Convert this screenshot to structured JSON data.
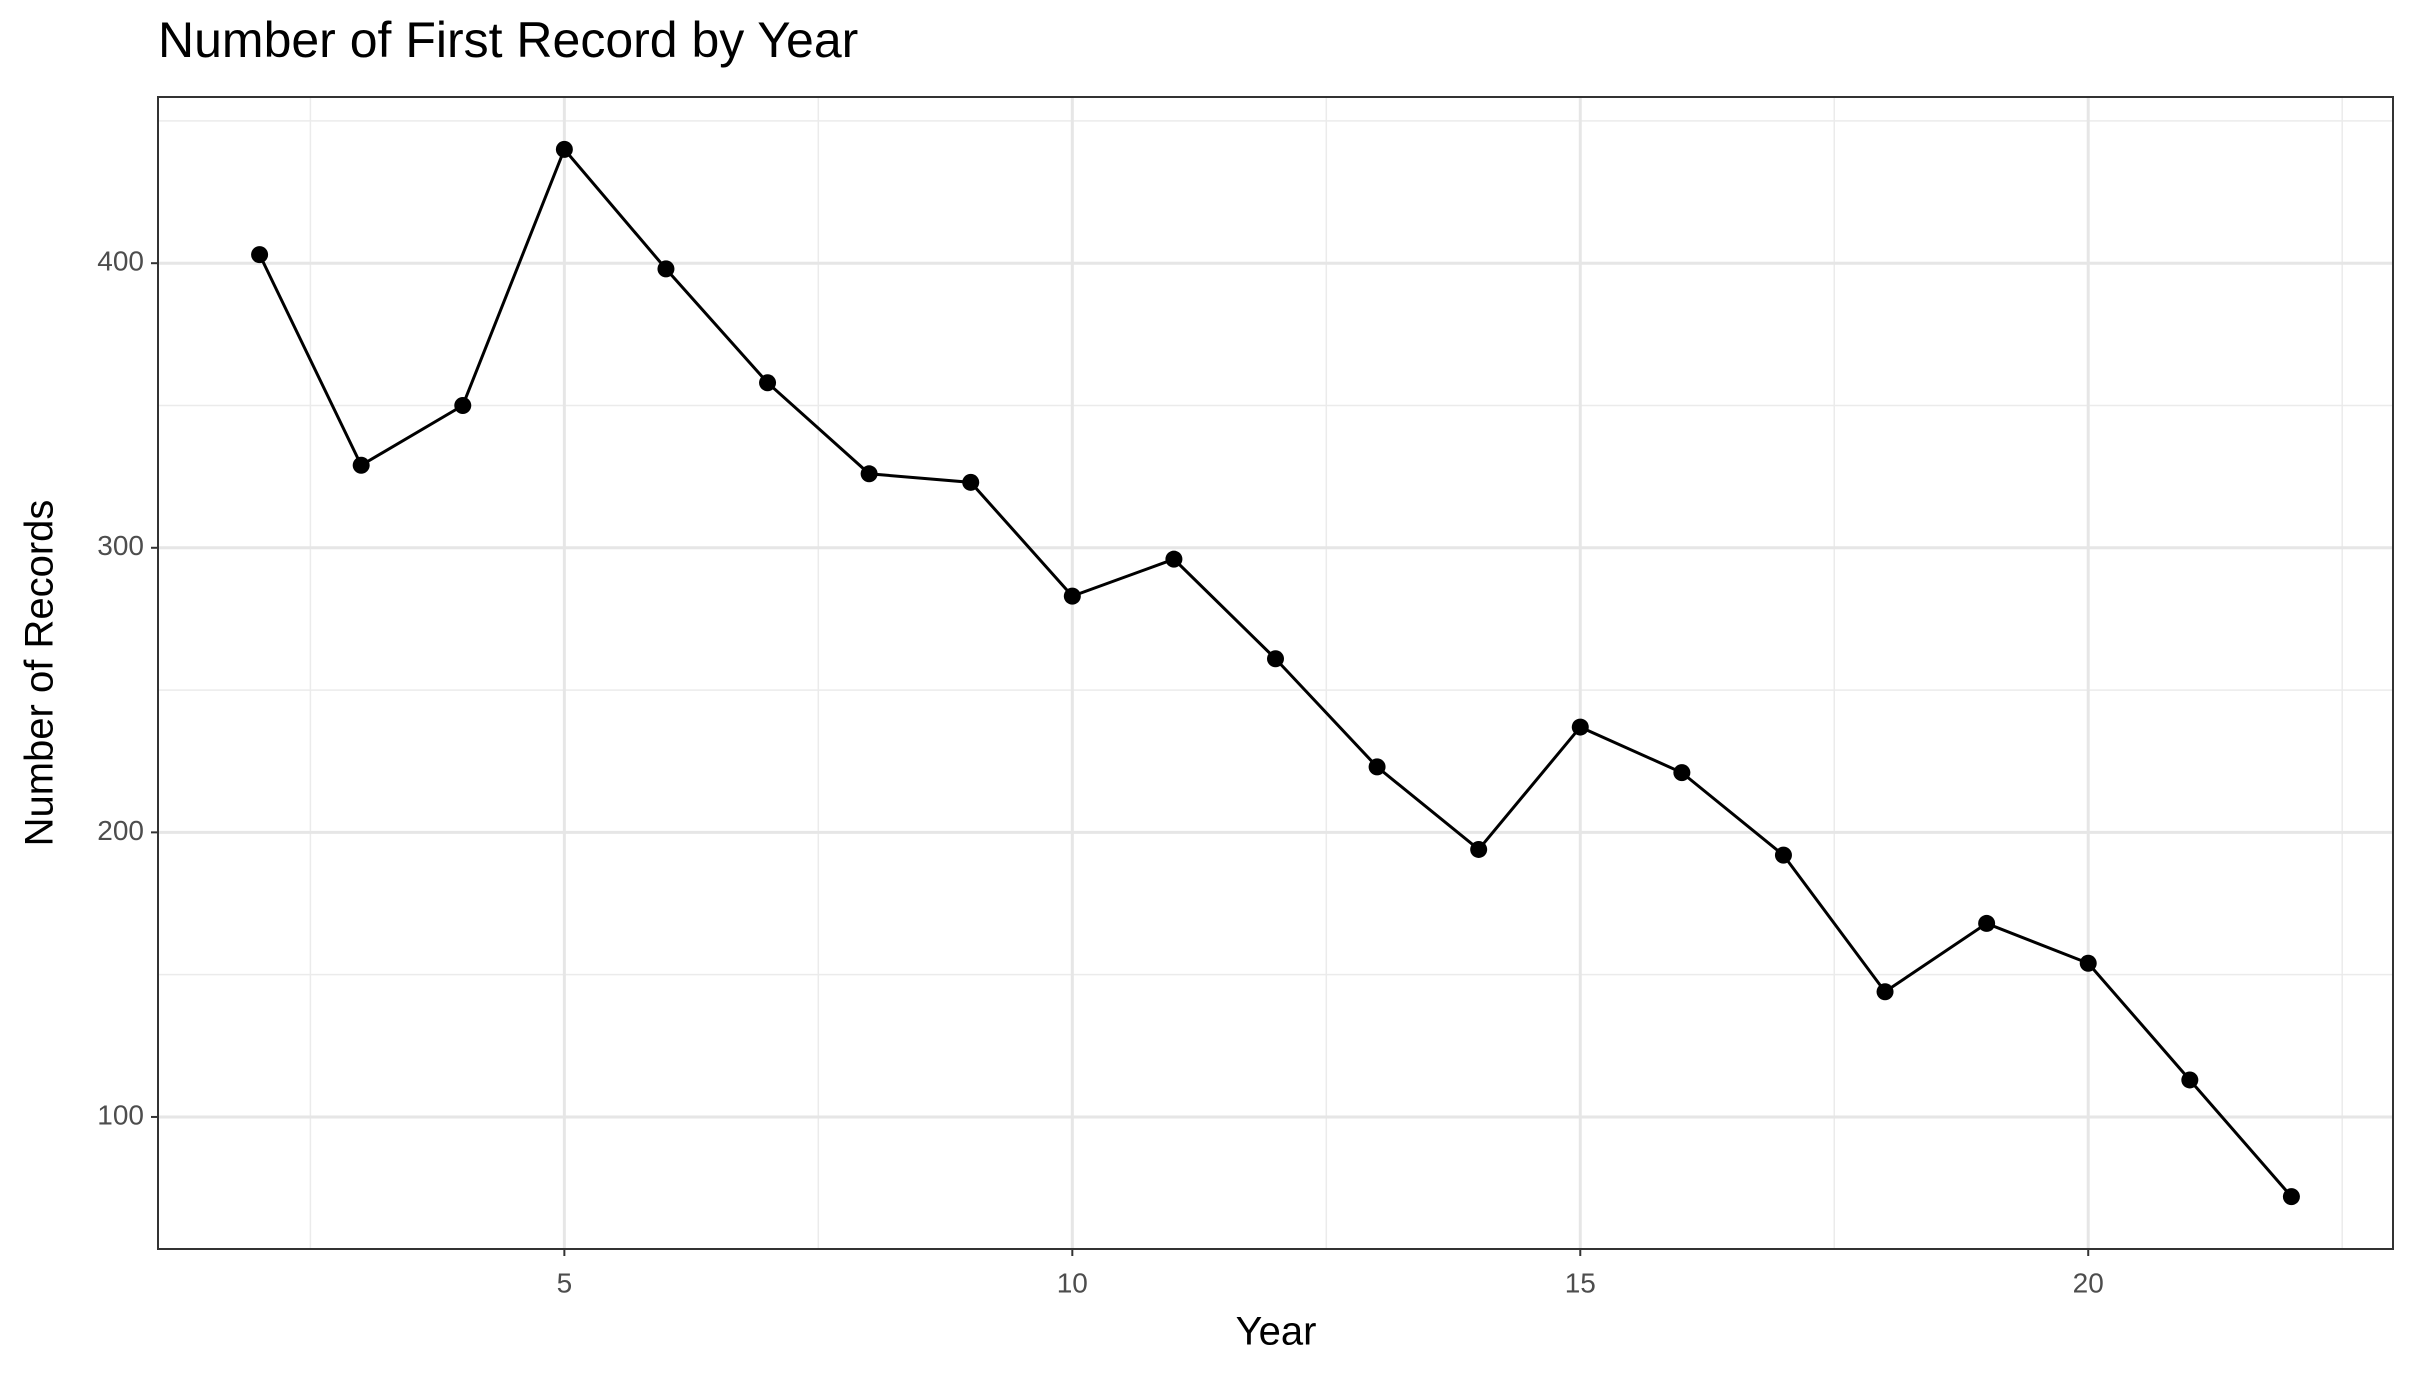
{
  "chart_data": {
    "type": "line",
    "title": "Number of First Record by Year",
    "x_label": "Year",
    "y_label": "Number of Records",
    "x": [
      2,
      3,
      4,
      5,
      6,
      7,
      8,
      9,
      10,
      11,
      12,
      13,
      14,
      15,
      16,
      17,
      18,
      19,
      20,
      21,
      22
    ],
    "series": [
      {
        "name": "Number of Records",
        "color": "#000000",
        "values": [
          403,
          329,
          350,
          440,
          398,
          358,
          326,
          323,
          283,
          296,
          261,
          223,
          194,
          237,
          221,
          192,
          144,
          168,
          154,
          113,
          72
        ]
      }
    ],
    "xlim": [
      1,
      23
    ],
    "ylim": [
      53.6,
      458.4
    ],
    "xticks": [
      5,
      10,
      15,
      20
    ],
    "yticks": [
      100,
      200,
      300,
      400
    ],
    "x_minor_grid": [
      2.5,
      7.5,
      12.5,
      17.5,
      22.5
    ],
    "y_minor_grid": [
      150,
      250,
      350,
      450
    ],
    "grid": true
  }
}
